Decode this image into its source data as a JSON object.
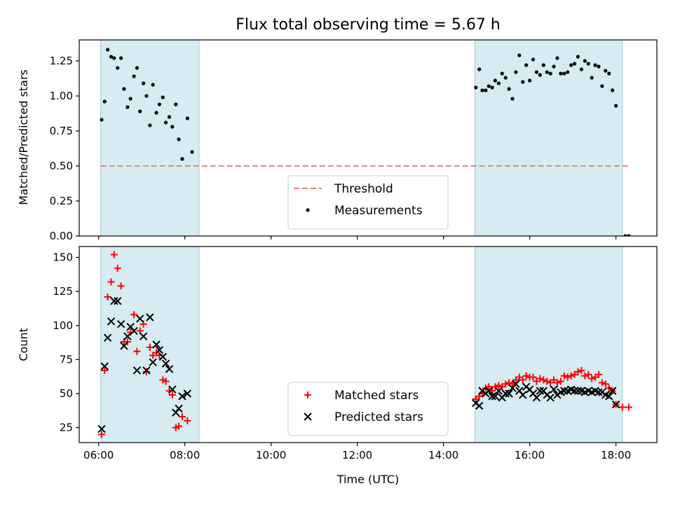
{
  "chart_data": {
    "title": "Flux total observing time = 5.67 h",
    "xlabel": "Time (UTC)",
    "x_unit": "hours UTC",
    "x_ticks": [
      6,
      8,
      10,
      12,
      14,
      16,
      18
    ],
    "x_tick_labels": [
      "06:00",
      "08:00",
      "10:00",
      "12:00",
      "14:00",
      "16:00",
      "18:00"
    ],
    "xlim": [
      5.55,
      18.95
    ],
    "shaded_intervals": [
      [
        6.05,
        8.33
      ],
      [
        14.73,
        18.15
      ]
    ],
    "shade_color": "#add8e6",
    "panels": [
      {
        "type": "scatter",
        "ylabel": "Matched/Predicted stars",
        "ylim": [
          0,
          1.4
        ],
        "y_ticks": [
          0,
          0.25,
          0.5,
          0.75,
          1.0,
          1.25
        ],
        "y_tick_labels": [
          "0.00",
          "0.25",
          "0.50",
          "0.75",
          "1.00",
          "1.25"
        ],
        "legend_position": "bottom-center",
        "threshold": {
          "name": "Threshold",
          "y": 0.5,
          "x_range": [
            6.05,
            18.3
          ],
          "color": "#f08080"
        },
        "series": [
          {
            "name": "Measurements",
            "marker": "dot",
            "color": "#000000",
            "points": [
              [
                6.07,
                0.83
              ],
              [
                6.14,
                0.96
              ],
              [
                6.21,
                1.33
              ],
              [
                6.29,
                1.28
              ],
              [
                6.36,
                1.27
              ],
              [
                6.44,
                1.2
              ],
              [
                6.52,
                1.27
              ],
              [
                6.59,
                1.05
              ],
              [
                6.67,
                0.92
              ],
              [
                6.74,
                0.98
              ],
              [
                6.82,
                1.14
              ],
              [
                6.89,
                1.2
              ],
              [
                6.96,
                0.89
              ],
              [
                7.04,
                1.09
              ],
              [
                7.11,
                1.0
              ],
              [
                7.19,
                0.79
              ],
              [
                7.26,
                1.08
              ],
              [
                7.34,
                0.88
              ],
              [
                7.41,
                0.94
              ],
              [
                7.49,
                0.99
              ],
              [
                7.56,
                0.81
              ],
              [
                7.64,
                0.85
              ],
              [
                7.71,
                0.78
              ],
              [
                7.79,
                0.94
              ],
              [
                7.86,
                0.69
              ],
              [
                7.94,
                0.55
              ],
              [
                8.06,
                0.84
              ],
              [
                8.17,
                0.6
              ],
              [
                14.75,
                1.06
              ],
              [
                14.83,
                1.19
              ],
              [
                14.9,
                1.04
              ],
              [
                14.98,
                1.04
              ],
              [
                15.05,
                1.07
              ],
              [
                15.13,
                1.06
              ],
              [
                15.2,
                1.11
              ],
              [
                15.28,
                1.09
              ],
              [
                15.36,
                1.16
              ],
              [
                15.44,
                1.13
              ],
              [
                15.52,
                1.05
              ],
              [
                15.6,
                0.98
              ],
              [
                15.68,
                1.17
              ],
              [
                15.76,
                1.29
              ],
              [
                15.84,
                1.1
              ],
              [
                15.92,
                1.22
              ],
              [
                16.0,
                1.11
              ],
              [
                16.08,
                1.26
              ],
              [
                16.16,
                1.17
              ],
              [
                16.24,
                1.15
              ],
              [
                16.32,
                1.22
              ],
              [
                16.4,
                1.17
              ],
              [
                16.48,
                1.16
              ],
              [
                16.56,
                1.21
              ],
              [
                16.64,
                1.27
              ],
              [
                16.72,
                1.16
              ],
              [
                16.8,
                1.16
              ],
              [
                16.88,
                1.17
              ],
              [
                16.96,
                1.22
              ],
              [
                17.04,
                1.23
              ],
              [
                17.12,
                1.28
              ],
              [
                17.2,
                1.19
              ],
              [
                17.28,
                1.25
              ],
              [
                17.36,
                1.23
              ],
              [
                17.44,
                1.13
              ],
              [
                17.52,
                1.22
              ],
              [
                17.6,
                1.21
              ],
              [
                17.68,
                1.07
              ],
              [
                17.76,
                1.18
              ],
              [
                17.84,
                1.16
              ],
              [
                17.92,
                1.04
              ],
              [
                18.0,
                0.93
              ],
              [
                18.22,
                0.0
              ],
              [
                18.3,
                0.0
              ]
            ]
          }
        ]
      },
      {
        "type": "scatter",
        "ylabel": "Count",
        "ylim": [
          14,
          158
        ],
        "y_ticks": [
          25,
          50,
          75,
          100,
          125,
          150
        ],
        "y_tick_labels": [
          "25",
          "50",
          "75",
          "100",
          "125",
          "150"
        ],
        "legend_position": "bottom-center",
        "series": [
          {
            "name": "Matched stars",
            "marker": "plus",
            "color": "#ff0000",
            "points": [
              [
                6.07,
                20
              ],
              [
                6.14,
                67
              ],
              [
                6.21,
                121
              ],
              [
                6.29,
                132
              ],
              [
                6.36,
                152
              ],
              [
                6.44,
                142
              ],
              [
                6.52,
                129
              ],
              [
                6.59,
                88
              ],
              [
                6.67,
                88
              ],
              [
                6.74,
                95
              ],
              [
                6.82,
                108
              ],
              [
                6.89,
                81
              ],
              [
                6.96,
                96
              ],
              [
                7.04,
                101
              ],
              [
                7.11,
                66
              ],
              [
                7.19,
                84
              ],
              [
                7.26,
                78
              ],
              [
                7.34,
                80
              ],
              [
                7.41,
                78
              ],
              [
                7.49,
                60
              ],
              [
                7.56,
                59
              ],
              [
                7.64,
                52
              ],
              [
                7.71,
                49
              ],
              [
                7.79,
                25
              ],
              [
                7.86,
                26
              ],
              [
                7.94,
                33
              ],
              [
                8.06,
                30
              ],
              [
                14.75,
                46
              ],
              [
                14.83,
                48
              ],
              [
                14.9,
                50
              ],
              [
                14.98,
                54
              ],
              [
                15.05,
                55
              ],
              [
                15.13,
                52
              ],
              [
                15.2,
                55
              ],
              [
                15.28,
                56
              ],
              [
                15.36,
                55
              ],
              [
                15.44,
                57
              ],
              [
                15.52,
                58
              ],
              [
                15.6,
                57
              ],
              [
                15.68,
                60
              ],
              [
                15.76,
                62
              ],
              [
                15.84,
                60
              ],
              [
                15.92,
                63
              ],
              [
                16.0,
                62
              ],
              [
                16.08,
                62
              ],
              [
                16.16,
                59
              ],
              [
                16.24,
                61
              ],
              [
                16.32,
                60
              ],
              [
                16.4,
                59
              ],
              [
                16.48,
                58
              ],
              [
                16.56,
                60
              ],
              [
                16.64,
                58
              ],
              [
                16.72,
                59
              ],
              [
                16.8,
                63
              ],
              [
                16.88,
                62
              ],
              [
                16.96,
                63
              ],
              [
                17.04,
                64
              ],
              [
                17.12,
                66
              ],
              [
                17.2,
                67
              ],
              [
                17.28,
                63
              ],
              [
                17.36,
                64
              ],
              [
                17.44,
                61
              ],
              [
                17.52,
                62
              ],
              [
                17.6,
                64
              ],
              [
                17.68,
                58
              ],
              [
                17.76,
                57
              ],
              [
                17.84,
                54
              ],
              [
                17.92,
                52
              ],
              [
                18.0,
                42
              ],
              [
                18.15,
                40
              ],
              [
                18.3,
                40
              ]
            ]
          },
          {
            "name": "Predicted stars",
            "marker": "x",
            "color": "#000000",
            "points": [
              [
                6.07,
                24
              ],
              [
                6.14,
                70
              ],
              [
                6.21,
                91
              ],
              [
                6.29,
                103
              ],
              [
                6.36,
                118
              ],
              [
                6.44,
                118
              ],
              [
                6.52,
                101
              ],
              [
                6.59,
                85
              ],
              [
                6.67,
                92
              ],
              [
                6.74,
                99
              ],
              [
                6.82,
                96
              ],
              [
                6.89,
                67
              ],
              [
                6.96,
                105
              ],
              [
                7.04,
                92
              ],
              [
                7.11,
                67
              ],
              [
                7.19,
                106
              ],
              [
                7.26,
                73
              ],
              [
                7.34,
                86
              ],
              [
                7.41,
                82
              ],
              [
                7.49,
                77
              ],
              [
                7.56,
                72
              ],
              [
                7.64,
                68
              ],
              [
                7.71,
                53
              ],
              [
                7.79,
                36
              ],
              [
                7.86,
                39
              ],
              [
                7.94,
                48
              ],
              [
                8.06,
                50
              ],
              [
                14.75,
                43
              ],
              [
                14.83,
                41
              ],
              [
                14.9,
                52
              ],
              [
                14.98,
                50
              ],
              [
                15.05,
                52
              ],
              [
                15.13,
                48
              ],
              [
                15.2,
                48
              ],
              [
                15.28,
                52
              ],
              [
                15.36,
                47
              ],
              [
                15.44,
                50
              ],
              [
                15.52,
                50
              ],
              [
                15.6,
                54
              ],
              [
                15.68,
                57
              ],
              [
                15.76,
                52
              ],
              [
                15.84,
                49
              ],
              [
                15.92,
                55
              ],
              [
                16.0,
                53
              ],
              [
                16.08,
                50
              ],
              [
                16.16,
                47
              ],
              [
                16.24,
                52
              ],
              [
                16.32,
                52
              ],
              [
                16.4,
                49
              ],
              [
                16.48,
                47
              ],
              [
                16.56,
                53
              ],
              [
                16.64,
                49
              ],
              [
                16.72,
                51
              ],
              [
                16.8,
                52
              ],
              [
                16.88,
                52
              ],
              [
                16.96,
                53
              ],
              [
                17.04,
                52
              ],
              [
                17.12,
                52
              ],
              [
                17.2,
                52
              ],
              [
                17.28,
                51
              ],
              [
                17.36,
                52
              ],
              [
                17.44,
                51
              ],
              [
                17.52,
                52
              ],
              [
                17.6,
                51
              ],
              [
                17.68,
                51
              ],
              [
                17.76,
                49
              ],
              [
                17.84,
                48
              ],
              [
                17.92,
                52
              ],
              [
                18.0,
                42
              ]
            ]
          }
        ]
      }
    ]
  }
}
